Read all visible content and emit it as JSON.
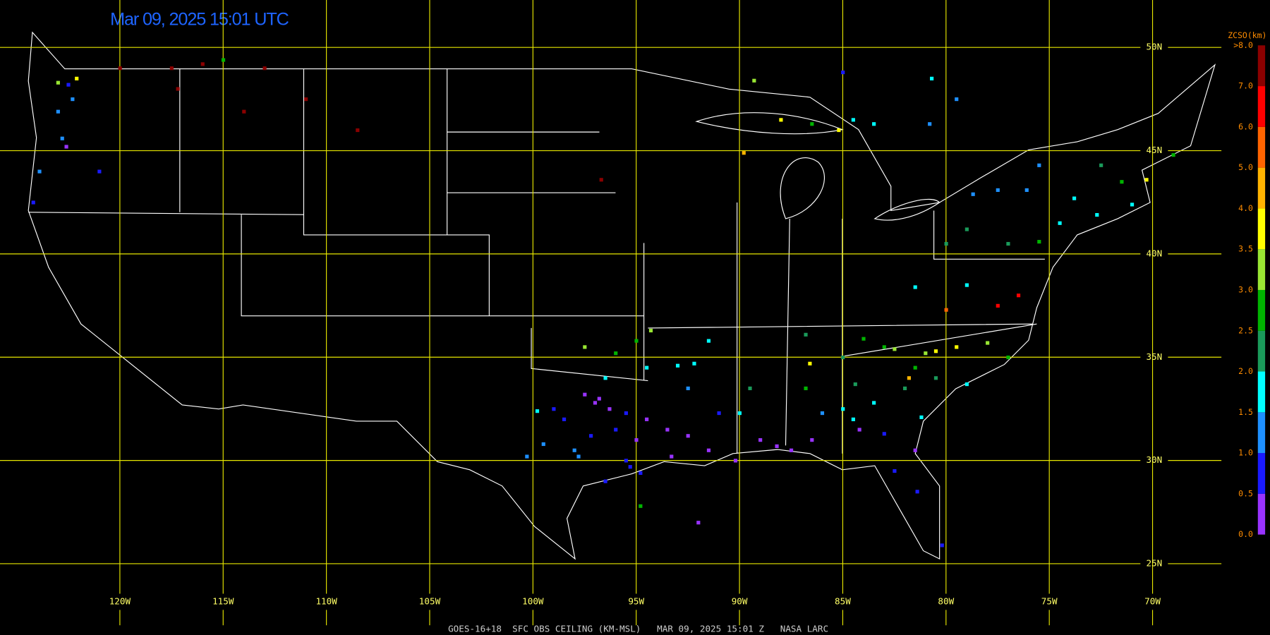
{
  "header": {
    "title": "Mar 09, 2025 15:01 UTC",
    "caption": "GOES-16+18  SFC OBS CEILING (KM-MSL)   MAR 09, 2025 15:01 Z   NASA LARC"
  },
  "map": {
    "lon_lines": [
      {
        "value": -120,
        "label": "120W"
      },
      {
        "value": -115,
        "label": "115W"
      },
      {
        "value": -110,
        "label": "110W"
      },
      {
        "value": -105,
        "label": "105W"
      },
      {
        "value": -100,
        "label": "100W"
      },
      {
        "value": -95,
        "label": "95W"
      },
      {
        "value": -90,
        "label": "90W"
      },
      {
        "value": -85,
        "label": "85W"
      },
      {
        "value": -80,
        "label": "80W"
      },
      {
        "value": -75,
        "label": "75W"
      },
      {
        "value": -70,
        "label": "70W"
      }
    ],
    "lat_lines": [
      {
        "value": 50,
        "label": "50N"
      },
      {
        "value": 45,
        "label": "45N"
      },
      {
        "value": 40,
        "label": "40N"
      },
      {
        "value": 35,
        "label": "35N"
      },
      {
        "value": 30,
        "label": "30N"
      },
      {
        "value": 25,
        "label": "25N"
      }
    ],
    "stations": [
      [
        -97.5,
        33.2,
        0.3
      ],
      [
        -96.8,
        33.0,
        0.2
      ],
      [
        -97.0,
        32.8,
        0.3
      ],
      [
        -96.3,
        32.5,
        0.4
      ],
      [
        -95.5,
        32.3,
        0.6
      ],
      [
        -96.0,
        31.5,
        0.7
      ],
      [
        -97.2,
        31.2,
        0.8
      ],
      [
        -98.5,
        32.0,
        0.9
      ],
      [
        -99.0,
        32.5,
        0.8
      ],
      [
        -98.0,
        30.5,
        1.2
      ],
      [
        -97.8,
        30.2,
        1.3
      ],
      [
        -95.5,
        30.0,
        0.7
      ],
      [
        -95.3,
        29.7,
        0.8
      ],
      [
        -94.8,
        29.4,
        0.6
      ],
      [
        -96.5,
        29.0,
        0.9
      ],
      [
        -95.0,
        31.0,
        0.4
      ],
      [
        -94.5,
        32.0,
        0.3
      ],
      [
        -99.8,
        32.4,
        1.8
      ],
      [
        -99.5,
        30.8,
        1.3
      ],
      [
        -100.3,
        30.2,
        1.1
      ],
      [
        -97.5,
        35.5,
        3.0
      ],
      [
        -96.0,
        35.2,
        2.6
      ],
      [
        -95.0,
        35.8,
        2.8
      ],
      [
        -94.3,
        36.3,
        3.2
      ],
      [
        -96.5,
        34.0,
        1.8
      ],
      [
        -94.5,
        34.5,
        1.6
      ],
      [
        -93.0,
        34.6,
        1.7
      ],
      [
        -92.2,
        34.7,
        1.6
      ],
      [
        -91.5,
        35.8,
        1.8
      ],
      [
        -92.5,
        33.5,
        1.3
      ],
      [
        -93.5,
        31.5,
        0.4
      ],
      [
        -92.5,
        31.2,
        0.3
      ],
      [
        -91.5,
        30.5,
        0.4
      ],
      [
        -90.2,
        30.0,
        0.3
      ],
      [
        -93.3,
        30.2,
        0.4
      ],
      [
        -91.0,
        32.3,
        0.5
      ],
      [
        -90.0,
        32.3,
        1.7
      ],
      [
        -89.0,
        31.0,
        0.3
      ],
      [
        -88.2,
        30.7,
        0.2
      ],
      [
        -89.5,
        33.5,
        2.1
      ],
      [
        -87.5,
        30.5,
        0.3
      ],
      [
        -86.5,
        31.0,
        0.4
      ],
      [
        -86.8,
        33.5,
        2.7
      ],
      [
        -86.0,
        32.3,
        1.4
      ],
      [
        -85.0,
        32.5,
        1.9
      ],
      [
        -84.4,
        33.7,
        2.1
      ],
      [
        -84.5,
        32.0,
        1.6
      ],
      [
        -83.5,
        32.8,
        1.7
      ],
      [
        -83.0,
        31.3,
        0.5
      ],
      [
        -84.2,
        31.5,
        0.3
      ],
      [
        -81.2,
        32.1,
        1.8
      ],
      [
        -81.5,
        30.5,
        0.3
      ],
      [
        -82.5,
        29.5,
        0.6
      ],
      [
        -81.4,
        28.5,
        0.9
      ],
      [
        -86.6,
        34.7,
        3.5
      ],
      [
        -85.0,
        35.0,
        2.4
      ],
      [
        -83.0,
        35.5,
        2.9
      ],
      [
        -82.5,
        35.4,
        3.1
      ],
      [
        -81.0,
        35.2,
        3.3
      ],
      [
        -80.5,
        35.3,
        3.6
      ],
      [
        -79.5,
        35.5,
        3.7
      ],
      [
        -78.0,
        35.7,
        3.4
      ],
      [
        -77.0,
        35.0,
        2.6
      ],
      [
        -80.5,
        34.0,
        2.4
      ],
      [
        -81.5,
        34.5,
        2.9
      ],
      [
        -82.0,
        33.5,
        2.1
      ],
      [
        -79.0,
        33.7,
        1.9
      ],
      [
        -86.8,
        36.1,
        2.3
      ],
      [
        -84.0,
        35.9,
        2.7
      ],
      [
        -81.8,
        34.0,
        4.8
      ],
      [
        -80.0,
        37.3,
        5.2
      ],
      [
        -77.5,
        37.5,
        6.5
      ],
      [
        -76.5,
        38.0,
        6.5
      ],
      [
        -79.0,
        38.5,
        1.8
      ],
      [
        -81.5,
        38.4,
        1.6
      ],
      [
        -80.0,
        40.5,
        2.3
      ],
      [
        -79.0,
        41.2,
        2.2
      ],
      [
        -77.0,
        40.5,
        2.1
      ],
      [
        -75.5,
        40.6,
        2.6
      ],
      [
        -74.5,
        41.5,
        1.7
      ],
      [
        -73.8,
        42.7,
        1.6
      ],
      [
        -76.1,
        43.1,
        1.2
      ],
      [
        -78.7,
        42.9,
        1.1
      ],
      [
        -77.5,
        43.1,
        1.3
      ],
      [
        -72.5,
        44.3,
        2.4
      ],
      [
        -71.5,
        43.5,
        2.5
      ],
      [
        -70.3,
        43.6,
        3.7
      ],
      [
        -71.0,
        42.4,
        1.5
      ],
      [
        -72.7,
        41.9,
        1.8
      ],
      [
        -75.5,
        44.3,
        1.0
      ],
      [
        -69.0,
        44.8,
        2.8
      ],
      [
        -88.0,
        46.5,
        3.8
      ],
      [
        -86.5,
        46.3,
        2.9
      ],
      [
        -85.2,
        46.0,
        3.6
      ],
      [
        -84.5,
        46.5,
        1.7
      ],
      [
        -83.5,
        46.3,
        1.9
      ],
      [
        -80.8,
        46.3,
        1.2
      ],
      [
        -79.5,
        47.5,
        1.0
      ],
      [
        -85.0,
        48.8,
        0.6
      ],
      [
        -89.3,
        48.4,
        3.0
      ],
      [
        -89.8,
        44.9,
        4.7
      ],
      [
        -80.7,
        48.5,
        1.7
      ],
      [
        -122.3,
        47.5,
        1.2
      ],
      [
        -122.5,
        48.2,
        0.9
      ],
      [
        -123.0,
        46.9,
        1.4
      ],
      [
        -122.8,
        45.6,
        1.1
      ],
      [
        -123.9,
        44.0,
        1.0
      ],
      [
        -124.2,
        42.5,
        0.8
      ],
      [
        -122.6,
        45.2,
        0.4
      ],
      [
        -121.0,
        44.0,
        0.6
      ],
      [
        -117.2,
        48.0,
        8
      ],
      [
        -116.0,
        49.2,
        8
      ],
      [
        -114.0,
        46.9,
        8
      ],
      [
        -111.0,
        47.5,
        8
      ],
      [
        -108.5,
        46.0,
        8
      ],
      [
        -113.0,
        49.0,
        8
      ],
      [
        -120.0,
        49.0,
        8
      ],
      [
        -117.5,
        49.0,
        8
      ],
      [
        -115.0,
        49.4,
        2.9
      ],
      [
        -122.1,
        48.5,
        3.7
      ],
      [
        -123.0,
        48.3,
        3.2
      ],
      [
        -96.7,
        43.6,
        7.5
      ],
      [
        -92.0,
        27.0,
        0.3
      ],
      [
        -94.8,
        27.8,
        2.7
      ],
      [
        -80.2,
        25.9,
        0.9
      ]
    ]
  },
  "colorbar": {
    "title": "ZCSO(km)",
    "ticks": [
      {
        "value": 0,
        "label": "0.0"
      },
      {
        "value": 0.5,
        "label": "0.5"
      },
      {
        "value": 1,
        "label": "1.0"
      },
      {
        "value": 1.5,
        "label": "1.5"
      },
      {
        "value": 2,
        "label": "2.0"
      },
      {
        "value": 2.5,
        "label": "2.5"
      },
      {
        "value": 3,
        "label": "3.0"
      },
      {
        "value": 3.5,
        "label": "3.5"
      },
      {
        "value": 4,
        "label": "4.0"
      },
      {
        "value": 5,
        "label": "5.0"
      },
      {
        "value": 6,
        "label": "6.0"
      },
      {
        "value": 7,
        "label": "7.0"
      },
      {
        "value": 8,
        "label": ">8.0"
      }
    ],
    "colors": [
      "#9933ff",
      "#1a1aff",
      "#1e90ff",
      "#00ffff",
      "#1a9a5a",
      "#00b400",
      "#99e633",
      "#ffff00",
      "#ffb400",
      "#ff6400",
      "#ff0000",
      "#8b0000"
    ]
  }
}
